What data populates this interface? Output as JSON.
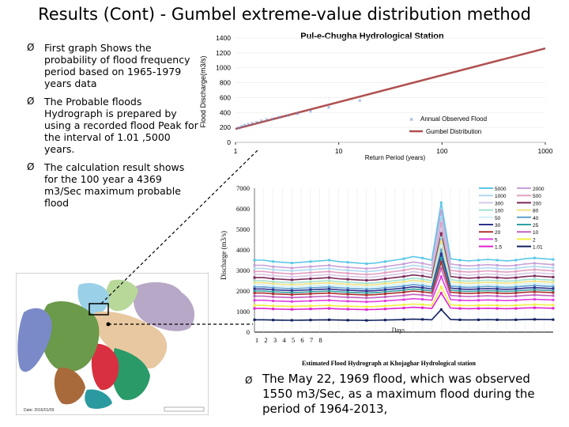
{
  "title": "Results (Cont) - Gumbel extreme-value distribution method",
  "bullets": [
    {
      "arrow": "Ø",
      "text": "First graph Shows the probability of flood frequency period based on 1965-1979 years data"
    },
    {
      "arrow": "Ø",
      "text": "The Probable floods Hydrograph is prepared by using a recorded flood Peak for the interval of 1.01 ,5000 years."
    },
    {
      "arrow": "Ø",
      "text": "The calculation result shows for the 100 year a 4369 m3/Sec maximum probable flood"
    },
    {
      "arrow": "Ø",
      "text": "The May 22, 1969 flood, which was observed 1550 m3/Sec, as a maximum flood during the period of 1964-2013,"
    }
  ],
  "map": {
    "date_label": "Date: 2016/01/09"
  },
  "chart_data": [
    {
      "type": "scatter",
      "title": "Pul-e-Chugha Hydrological Station",
      "xlabel": "Return Period (years)",
      "ylabel": "Flood Discharge(m3/s)",
      "xscale": "log",
      "xlim": [
        1,
        1000
      ],
      "ylim": [
        0,
        1400
      ],
      "xticks": [
        "1",
        "10",
        "100",
        "1000"
      ],
      "yticks": [
        "0",
        "200",
        "400",
        "600",
        "800",
        "1000",
        "1200",
        "1400"
      ],
      "legend": [
        "Annual Observed Flood",
        "Gumbel Distribution"
      ],
      "observed": {
        "x": [
          1.07,
          1.15,
          1.23,
          1.33,
          1.45,
          1.6,
          1.78,
          2.0,
          2.29,
          2.67,
          3.2,
          4.0,
          5.33,
          8.0,
          16.0
        ],
        "y": [
          195,
          215,
          232,
          245,
          258,
          272,
          290,
          305,
          320,
          338,
          360,
          385,
          420,
          470,
          560
        ]
      },
      "gumbel": {
        "x": [
          1,
          1000
        ],
        "y": [
          180,
          1260
        ]
      }
    },
    {
      "type": "line",
      "title": "Estimated Flood Hydrograph at Khojaghar Hydrological station",
      "xlabel": "Days",
      "ylabel": "Discharge (m3/s)",
      "ylim": [
        0,
        7000
      ],
      "xticks": [
        "1",
        "2",
        "3",
        "4",
        "5",
        "6",
        "7",
        "8"
      ],
      "yticks": [
        "0",
        "1000",
        "2000",
        "3000",
        "4000",
        "5000",
        "6000",
        "7000"
      ],
      "series": [
        {
          "name": "5000",
          "color": "#5bc8e8",
          "base": 3500,
          "peak": 6300
        },
        {
          "name": "2000",
          "color": "#c8a0d8",
          "base": 3250,
          "peak": 5900
        },
        {
          "name": "1000",
          "color": "#b0d8f0",
          "base": 3100,
          "peak": 5600
        },
        {
          "name": "500",
          "color": "#e0a0c0",
          "base": 2950,
          "peak": 5300
        },
        {
          "name": "300",
          "color": "#d8c8e8",
          "base": 2800,
          "peak": 5000
        },
        {
          "name": "200",
          "color": "#7a2a5a",
          "base": 2650,
          "peak": 4800
        },
        {
          "name": "100",
          "color": "#a0e0d0",
          "base": 2500,
          "peak": 4600
        },
        {
          "name": "80",
          "color": "#f0e080",
          "base": 2400,
          "peak": 4400
        },
        {
          "name": "50",
          "color": "#d0f0f8",
          "base": 2300,
          "peak": 4200
        },
        {
          "name": "40",
          "color": "#60a0d0",
          "base": 2200,
          "peak": 4000
        },
        {
          "name": "30",
          "color": "#303090",
          "base": 2100,
          "peak": 3800
        },
        {
          "name": "25",
          "color": "#30a0a0",
          "base": 2000,
          "peak": 3600
        },
        {
          "name": "20",
          "color": "#b03030",
          "base": 1900,
          "peak": 3400
        },
        {
          "name": "10",
          "color": "#c060c0",
          "base": 1750,
          "peak": 3100
        },
        {
          "name": "5",
          "color": "#e040e0",
          "base": 1550,
          "peak": 2700
        },
        {
          "name": "2",
          "color": "#f0f040",
          "base": 1300,
          "peak": 2200
        },
        {
          "name": "1.5",
          "color": "#e020d0",
          "base": 1150,
          "peak": 1900
        },
        {
          "name": "1.01",
          "color": "#102060",
          "base": 600,
          "peak": 1100
        }
      ]
    }
  ]
}
